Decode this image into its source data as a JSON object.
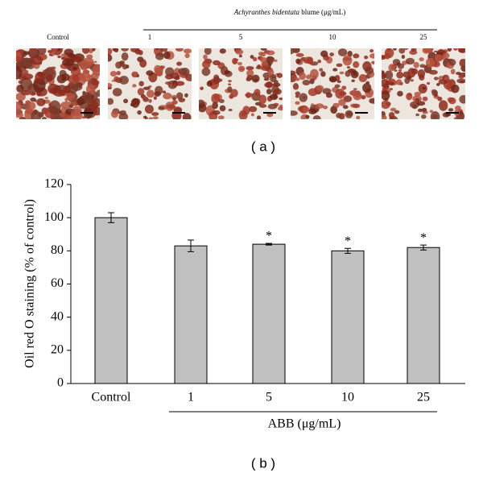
{
  "panel_a": {
    "label": "( a )",
    "title_italic": "Achyranthes bidentata",
    "title_rest": "blume (μg/mL)",
    "images": [
      "Control",
      "1",
      "5",
      "10",
      "25"
    ]
  },
  "chart_data": {
    "type": "bar",
    "panel_label": "( b )",
    "ylabel": "Oil red O staining (% of control)",
    "group_label": "ABB (μg/mL)",
    "categories": [
      "Control",
      "1",
      "5",
      "10",
      "25"
    ],
    "values": [
      100,
      83,
      84,
      80,
      82
    ],
    "errors": [
      3,
      3.5,
      0.5,
      1.5,
      1.5
    ],
    "value_labels": [
      null,
      null,
      "*",
      "*",
      "*"
    ],
    "color": "#c0c0c0",
    "ylim": [
      0,
      120
    ],
    "yticks": [
      0,
      20,
      40,
      60,
      80,
      100,
      120
    ],
    "grid": false
  }
}
